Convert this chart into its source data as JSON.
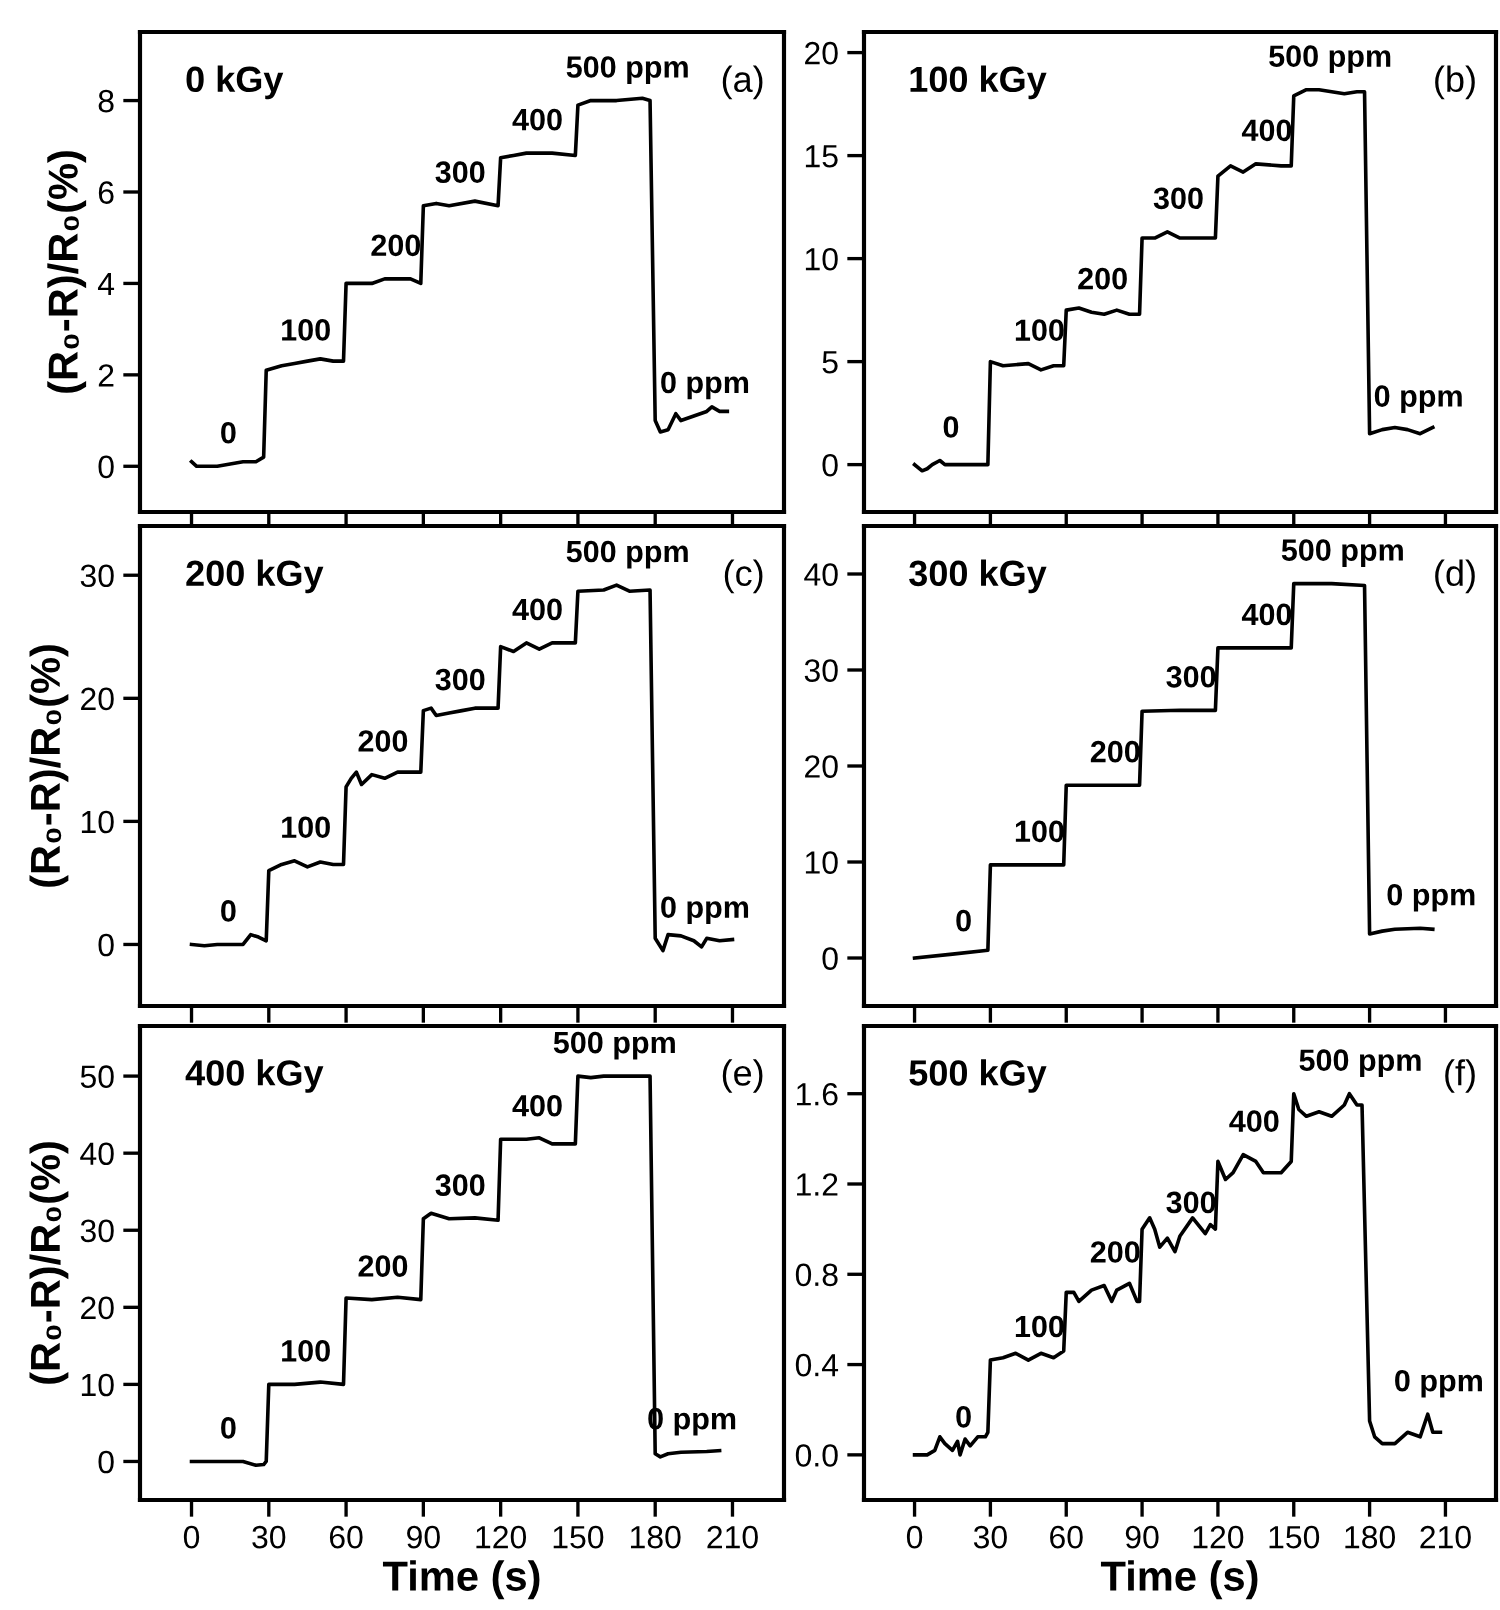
{
  "chart_data": [
    {
      "type": "line",
      "title": "0 kGy",
      "ylabel": "(R₀-R)/R₀(%)",
      "xlim": [
        -20,
        230
      ],
      "xticks": [
        0,
        30,
        60,
        90,
        120,
        150,
        180,
        210
      ],
      "ylim": [
        -1,
        9.5
      ],
      "yticks": [
        0,
        2,
        4,
        6,
        8
      ],
      "tick_labels": "y",
      "grid": false,
      "series": [
        {
          "color": "#000000",
          "x": [
            0,
            2,
            5,
            10,
            15,
            20,
            25,
            28,
            29,
            35,
            40,
            45,
            50,
            55,
            59,
            60,
            70,
            75,
            85,
            89,
            90,
            95,
            100,
            110,
            119,
            120,
            125,
            130,
            140,
            149,
            150,
            155,
            165,
            175,
            178,
            180,
            182,
            185,
            188,
            190,
            195,
            200,
            202,
            205,
            208
          ],
          "values": [
            0.1,
            0,
            0,
            0,
            0.05,
            0.1,
            0.1,
            0.2,
            2.1,
            2.2,
            2.25,
            2.3,
            2.35,
            2.3,
            2.3,
            4.0,
            4.0,
            4.1,
            4.1,
            4.0,
            5.7,
            5.75,
            5.7,
            5.8,
            5.7,
            6.75,
            6.8,
            6.85,
            6.85,
            6.8,
            7.9,
            8.0,
            8.0,
            8.05,
            8.0,
            1.0,
            0.75,
            0.8,
            1.15,
            1.0,
            1.1,
            1.2,
            1.3,
            1.2,
            1.2
          ]
        }
      ],
      "annotations": [
        "(a)",
        {
          "text": "0",
          "x": 10,
          "y": 0
        },
        {
          "text": "100",
          "x": 40,
          "y": 2.25
        },
        {
          "text": "200",
          "x": 75,
          "y": 4.1
        },
        {
          "text": "300",
          "x": 100,
          "y": 5.7
        },
        {
          "text": "400",
          "x": 130,
          "y": 6.85
        },
        {
          "text": "500 ppm",
          "x": 165,
          "y": 8.0
        },
        {
          "text": "0 ppm",
          "x": 195,
          "y": 1.1
        }
      ]
    },
    {
      "type": "line",
      "title": "100 kGy",
      "xlim": [
        -20,
        230
      ],
      "xticks": [
        0,
        30,
        60,
        90,
        120,
        150,
        180,
        210
      ],
      "ylim": [
        -2.3,
        21
      ],
      "yticks": [
        0,
        5,
        10,
        15,
        20
      ],
      "tick_labels": "y",
      "grid": false,
      "series": [
        {
          "color": "#000000",
          "x": [
            0,
            3,
            5,
            7,
            10,
            12,
            20,
            29,
            30,
            35,
            45,
            50,
            55,
            59,
            60,
            65,
            70,
            75,
            80,
            85,
            89,
            90,
            95,
            100,
            105,
            110,
            119,
            120,
            125,
            130,
            135,
            145,
            149,
            150,
            155,
            160,
            170,
            175,
            178,
            180,
            185,
            190,
            195,
            200,
            205
          ],
          "values": [
            0,
            -0.3,
            -0.2,
            0,
            0.2,
            0,
            0,
            0,
            5.0,
            4.8,
            4.9,
            4.6,
            4.8,
            4.8,
            7.5,
            7.6,
            7.4,
            7.3,
            7.5,
            7.3,
            7.3,
            11.0,
            11.0,
            11.3,
            11.0,
            11.0,
            11.0,
            14.0,
            14.5,
            14.2,
            14.6,
            14.5,
            14.5,
            17.9,
            18.2,
            18.2,
            18.0,
            18.1,
            18.1,
            1.5,
            1.7,
            1.8,
            1.7,
            1.5,
            1.8
          ]
        }
      ],
      "annotations": [
        "(b)",
        {
          "text": "0",
          "x": 10,
          "y": 0.2
        },
        {
          "text": "100",
          "x": 45,
          "y": 4.9
        },
        {
          "text": "200",
          "x": 70,
          "y": 7.4
        },
        {
          "text": "300",
          "x": 100,
          "y": 11.3
        },
        {
          "text": "400",
          "x": 135,
          "y": 14.6
        },
        {
          "text": "500 ppm",
          "x": 160,
          "y": 18.2
        },
        {
          "text": "0 ppm",
          "x": 195,
          "y": 1.7
        }
      ]
    },
    {
      "type": "line",
      "title": "200 kGy",
      "ylabel": "(R₀-R)/R₀(%)",
      "xlim": [
        -20,
        230
      ],
      "xticks": [
        0,
        30,
        60,
        90,
        120,
        150,
        180,
        210
      ],
      "ylim": [
        -5,
        34
      ],
      "yticks": [
        0,
        10,
        20,
        30
      ],
      "tick_labels": "y",
      "grid": false,
      "series": [
        {
          "color": "#000000",
          "x": [
            0,
            5,
            10,
            20,
            23,
            26,
            29,
            30,
            35,
            40,
            45,
            50,
            55,
            59,
            60,
            62,
            64,
            66,
            70,
            75,
            80,
            89,
            90,
            93,
            95,
            100,
            105,
            110,
            119,
            120,
            125,
            130,
            135,
            140,
            149,
            150,
            160,
            165,
            170,
            178,
            180,
            183,
            185,
            190,
            195,
            198,
            200,
            205,
            210
          ],
          "values": [
            0,
            -0.1,
            0,
            0,
            0.8,
            0.6,
            0.3,
            6,
            6.5,
            6.8,
            6.3,
            6.7,
            6.5,
            6.5,
            12.8,
            13.5,
            14,
            13,
            13.8,
            13.5,
            14,
            14,
            19,
            19.2,
            18.6,
            18.8,
            19,
            19.2,
            19.2,
            24.2,
            23.8,
            24.5,
            24,
            24.5,
            24.5,
            28.7,
            28.8,
            29.2,
            28.7,
            28.8,
            0.5,
            -0.5,
            0.8,
            0.7,
            0.3,
            -0.2,
            0.5,
            0.3,
            0.4
          ]
        }
      ],
      "annotations": [
        "(c)",
        {
          "text": "0",
          "x": 10,
          "y": 0
        },
        {
          "text": "100",
          "x": 40,
          "y": 6.8
        },
        {
          "text": "200",
          "x": 70,
          "y": 13.8
        },
        {
          "text": "300",
          "x": 100,
          "y": 18.8
        },
        {
          "text": "400",
          "x": 130,
          "y": 24.5
        },
        {
          "text": "500 ppm",
          "x": 165,
          "y": 29.2
        },
        {
          "text": "0 ppm",
          "x": 195,
          "y": 0.3
        }
      ]
    },
    {
      "type": "line",
      "title": "300 kGy",
      "xlim": [
        -20,
        230
      ],
      "xticks": [
        0,
        30,
        60,
        90,
        120,
        150,
        180,
        210
      ],
      "ylim": [
        -5,
        45
      ],
      "yticks": [
        0,
        10,
        20,
        30,
        40
      ],
      "tick_labels": "y",
      "grid": false,
      "series": [
        {
          "color": "#000000",
          "x": [
            0,
            15,
            29,
            30,
            45,
            59,
            60,
            75,
            89,
            90,
            105,
            119,
            120,
            135,
            149,
            150,
            165,
            178,
            180,
            185,
            190,
            200,
            205
          ],
          "values": [
            0,
            0.4,
            0.8,
            9.7,
            9.7,
            9.7,
            18,
            18,
            18,
            25.7,
            25.8,
            25.8,
            32.3,
            32.3,
            32.3,
            39,
            39,
            38.8,
            2.5,
            2.8,
            3,
            3.1,
            3.0
          ]
        }
      ],
      "annotations": [
        "(d)",
        {
          "text": "0",
          "x": 15,
          "y": 0.4
        },
        {
          "text": "100",
          "x": 45,
          "y": 9.7
        },
        {
          "text": "200",
          "x": 75,
          "y": 18
        },
        {
          "text": "300",
          "x": 105,
          "y": 25.8
        },
        {
          "text": "400",
          "x": 135,
          "y": 32.3
        },
        {
          "text": "500 ppm",
          "x": 165,
          "y": 39
        },
        {
          "text": "0 ppm",
          "x": 200,
          "y": 3.1
        }
      ]
    },
    {
      "type": "line",
      "title": "400 kGy",
      "ylabel": "(R₀-R)/R₀(%)",
      "xlabel": "Time (s)",
      "xlim": [
        -20,
        230
      ],
      "xticks": [
        0,
        30,
        60,
        90,
        120,
        150,
        180,
        210
      ],
      "ylim": [
        -5,
        56.5
      ],
      "yticks": [
        0,
        10,
        20,
        30,
        40,
        50
      ],
      "grid": false,
      "series": [
        {
          "color": "#000000",
          "x": [
            0,
            10,
            20,
            25,
            28,
            29,
            30,
            40,
            50,
            59,
            60,
            70,
            80,
            89,
            90,
            93,
            100,
            110,
            119,
            120,
            130,
            135,
            140,
            149,
            150,
            155,
            160,
            170,
            178,
            180,
            182,
            185,
            190,
            200,
            205
          ],
          "values": [
            0,
            0,
            0,
            -0.5,
            -0.4,
            0,
            10,
            10,
            10.3,
            10,
            21.2,
            21,
            21.3,
            21,
            31.5,
            32.2,
            31.5,
            31.6,
            31.3,
            41.8,
            41.8,
            42,
            41.2,
            41.2,
            50,
            49.8,
            50,
            50,
            50,
            1,
            0.6,
            1,
            1.2,
            1.3,
            1.4
          ]
        }
      ],
      "annotations": [
        "(e)",
        {
          "text": "0",
          "x": 10,
          "y": 0
        },
        {
          "text": "100",
          "x": 40,
          "y": 10
        },
        {
          "text": "200",
          "x": 70,
          "y": 21
        },
        {
          "text": "300",
          "x": 100,
          "y": 31.5
        },
        {
          "text": "400",
          "x": 130,
          "y": 41.8
        },
        {
          "text": "500 ppm",
          "x": 160,
          "y": 50
        },
        {
          "text": "0 ppm",
          "x": 190,
          "y": 1.2
        }
      ]
    },
    {
      "type": "line",
      "title": "500 kGy",
      "xlabel": "Time (s)",
      "xlim": [
        -20,
        230
      ],
      "xticks": [
        0,
        30,
        60,
        90,
        120,
        150,
        180,
        210
      ],
      "ylim": [
        -0.2,
        1.9
      ],
      "yticks": [
        {
          "value": 0,
          "label": "0.0"
        },
        0.4,
        0.8,
        1.2,
        1.6
      ],
      "grid": false,
      "series": [
        {
          "color": "#000000",
          "x": [
            0,
            5,
            8,
            10,
            12,
            15,
            17,
            18,
            20,
            22,
            25,
            28,
            29,
            30,
            35,
            40,
            45,
            50,
            55,
            59,
            60,
            63,
            65,
            70,
            75,
            78,
            80,
            85,
            88,
            89,
            90,
            93,
            95,
            97,
            100,
            103,
            105,
            110,
            115,
            117,
            119,
            120,
            123,
            126,
            130,
            135,
            138,
            145,
            149,
            150,
            152,
            155,
            160,
            165,
            170,
            172,
            175,
            177,
            180,
            182,
            185,
            190,
            195,
            200,
            203,
            205,
            208
          ],
          "values": [
            0,
            0,
            0.02,
            0.08,
            0.05,
            0.02,
            0.06,
            0,
            0.07,
            0.04,
            0.08,
            0.08,
            0.1,
            0.42,
            0.43,
            0.45,
            0.42,
            0.45,
            0.43,
            0.46,
            0.72,
            0.72,
            0.68,
            0.73,
            0.75,
            0.68,
            0.73,
            0.76,
            0.68,
            0.68,
            1.0,
            1.05,
            1.0,
            0.92,
            0.96,
            0.9,
            0.97,
            1.05,
            0.98,
            1.02,
            1.0,
            1.3,
            1.22,
            1.25,
            1.33,
            1.3,
            1.25,
            1.25,
            1.3,
            1.6,
            1.53,
            1.5,
            1.52,
            1.5,
            1.55,
            1.6,
            1.55,
            1.55,
            0.15,
            0.08,
            0.05,
            0.05,
            0.1,
            0.08,
            0.18,
            0.1,
            0.1
          ]
        }
      ],
      "annotations": [
        "(f)",
        {
          "text": "0",
          "x": 15,
          "y": 0.02
        },
        {
          "text": "100",
          "x": 45,
          "y": 0.42
        },
        {
          "text": "200",
          "x": 75,
          "y": 0.75
        },
        {
          "text": "300",
          "x": 105,
          "y": 0.97
        },
        {
          "text": "400",
          "x": 130,
          "y": 1.33
        },
        {
          "text": "500 ppm",
          "x": 172,
          "y": 1.6
        },
        {
          "text": "0 ppm",
          "x": 203,
          "y": 0.18
        }
      ]
    }
  ]
}
